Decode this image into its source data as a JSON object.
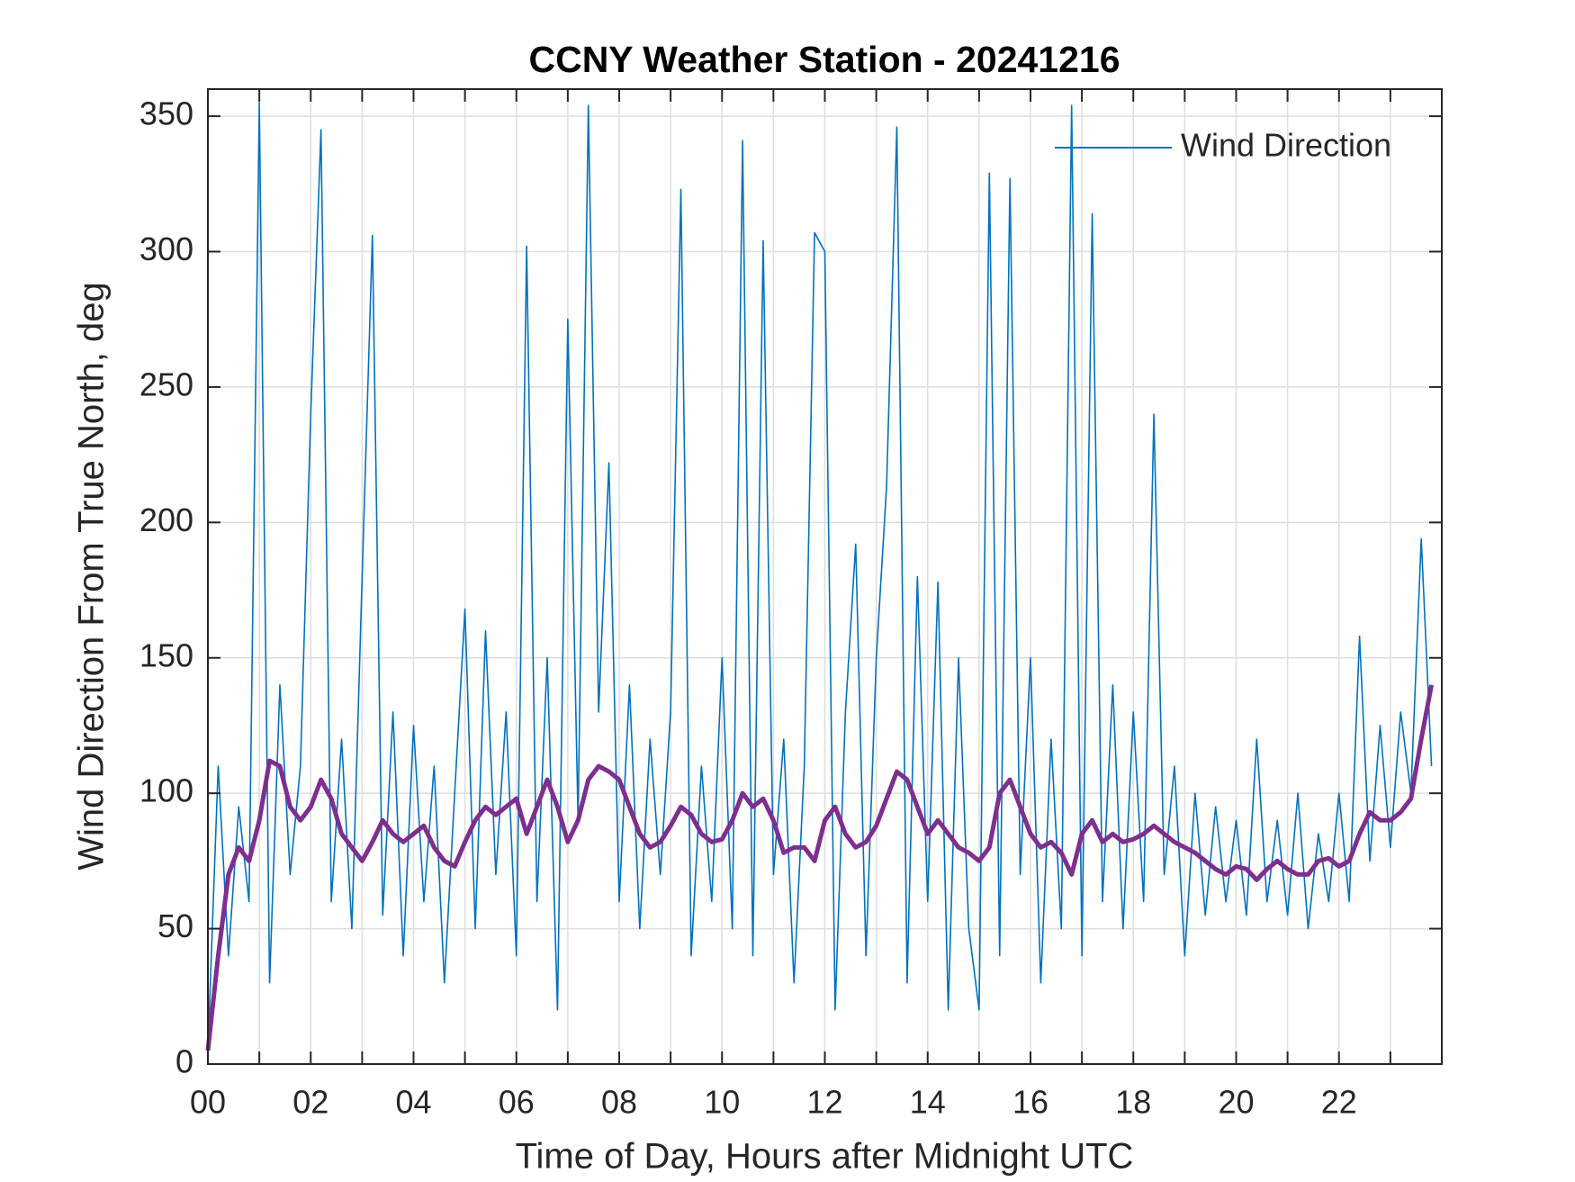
{
  "chart_data": {
    "type": "line",
    "title": "CCNY Weather Station - 20241216",
    "xlabel": "Time of Day, Hours after Midnight UTC",
    "ylabel": "Wind Direction From True North, deg",
    "xlim": [
      0,
      24
    ],
    "ylim": [
      0,
      360
    ],
    "xticks": [
      {
        "value": 0,
        "label": "00"
      },
      {
        "value": 2,
        "label": "02"
      },
      {
        "value": 4,
        "label": "04"
      },
      {
        "value": 6,
        "label": "06"
      },
      {
        "value": 8,
        "label": "08"
      },
      10,
      12,
      14,
      16,
      18,
      20,
      22
    ],
    "xminorticks": [
      1,
      3,
      5,
      7,
      9,
      11,
      13,
      15,
      17,
      19,
      21,
      23
    ],
    "yticks": [
      0,
      50,
      100,
      150,
      200,
      250,
      300,
      350
    ],
    "grid": true,
    "legend": "northeast",
    "x": [
      0,
      0.2,
      0.4,
      0.6,
      0.8,
      1,
      1.2,
      1.4,
      1.6,
      1.8,
      2,
      2.2,
      2.4,
      2.6,
      2.8,
      3,
      3.2,
      3.4,
      3.6,
      3.8,
      4,
      4.2,
      4.4,
      4.6,
      4.8,
      5,
      5.2,
      5.4,
      5.6,
      5.8,
      6,
      6.2,
      6.4,
      6.6,
      6.8,
      7,
      7.2,
      7.4,
      7.6,
      7.8,
      8,
      8.2,
      8.4,
      8.6,
      8.8,
      9,
      9.2,
      9.4,
      9.6,
      9.8,
      10,
      10.2,
      10.4,
      10.6,
      10.8,
      11,
      11.2,
      11.4,
      11.6,
      11.8,
      12,
      12.2,
      12.4,
      12.6,
      12.8,
      13,
      13.2,
      13.4,
      13.6,
      13.8,
      14,
      14.2,
      14.4,
      14.6,
      14.8,
      15,
      15.2,
      15.4,
      15.6,
      15.8,
      16,
      16.2,
      16.4,
      16.6,
      16.8,
      17,
      17.2,
      17.4,
      17.6,
      17.8,
      18,
      18.2,
      18.4,
      18.6,
      18.8,
      19,
      19.2,
      19.4,
      19.6,
      19.8,
      20,
      20.2,
      20.4,
      20.6,
      20.8,
      21,
      21.2,
      21.4,
      21.6,
      21.8,
      22,
      22.2,
      22.4,
      22.6,
      22.8,
      23,
      23.2,
      23.4,
      23.6,
      23.8
    ],
    "series": [
      {
        "name": "Wind Direction",
        "color": "#0072bd",
        "width": 1.6,
        "values": [
          5,
          110,
          40,
          95,
          60,
          355,
          30,
          140,
          70,
          110,
          240,
          345,
          60,
          120,
          50,
          180,
          306,
          55,
          130,
          40,
          125,
          60,
          110,
          30,
          100,
          168,
          50,
          160,
          70,
          130,
          40,
          302,
          60,
          150,
          20,
          275,
          90,
          354,
          130,
          222,
          60,
          140,
          50,
          120,
          70,
          130,
          323,
          40,
          110,
          60,
          150,
          50,
          341,
          40,
          304,
          70,
          120,
          30,
          110,
          307,
          300,
          20,
          130,
          192,
          40,
          150,
          213,
          346,
          30,
          180,
          60,
          178,
          20,
          150,
          50,
          20,
          329,
          40,
          327,
          70,
          150,
          30,
          120,
          50,
          354,
          40,
          314,
          60,
          140,
          50,
          130,
          60,
          240,
          70,
          110,
          40,
          100,
          55,
          95,
          60,
          90,
          55,
          120,
          60,
          90,
          55,
          100,
          50,
          85,
          60,
          100,
          60,
          158,
          75,
          125,
          80,
          130,
          100,
          194,
          110
        ]
      },
      {
        "color": "#7e2f8e",
        "width": 5,
        "values": [
          5,
          40,
          70,
          80,
          75,
          90,
          112,
          110,
          95,
          90,
          95,
          105,
          98,
          85,
          80,
          75,
          82,
          90,
          85,
          82,
          85,
          88,
          80,
          75,
          73,
          82,
          90,
          95,
          92,
          95,
          98,
          85,
          95,
          105,
          95,
          82,
          90,
          105,
          110,
          108,
          105,
          95,
          85,
          80,
          82,
          88,
          95,
          92,
          85,
          82,
          83,
          90,
          100,
          95,
          98,
          90,
          78,
          80,
          80,
          75,
          90,
          95,
          85,
          80,
          82,
          88,
          98,
          108,
          105,
          95,
          85,
          90,
          85,
          80,
          78,
          75,
          80,
          100,
          105,
          95,
          85,
          80,
          82,
          78,
          70,
          85,
          90,
          82,
          85,
          82,
          83,
          85,
          88,
          85,
          82,
          80,
          78,
          75,
          72,
          70,
          73,
          72,
          68,
          72,
          75,
          72,
          70,
          70,
          75,
          76,
          73,
          75,
          85,
          93,
          90,
          90,
          93,
          98,
          120,
          140
        ]
      }
    ]
  }
}
